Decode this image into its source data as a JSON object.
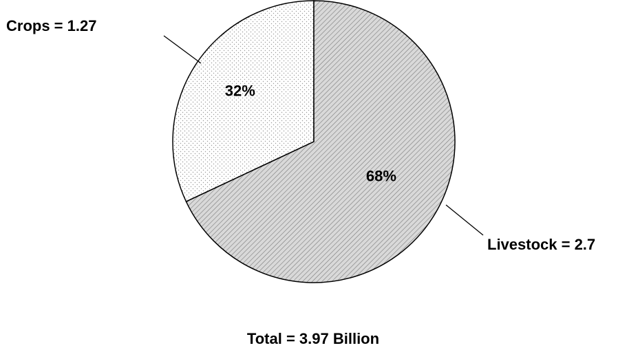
{
  "chart_data": {
    "type": "pie",
    "slices": [
      {
        "name": "Crops",
        "value": 1.27,
        "percent_label": "32%",
        "callout_label": "Crops = 1.27",
        "pattern": "dots",
        "color": "#ffffff"
      },
      {
        "name": "Livestock",
        "value": 2.7,
        "percent_label": "68%",
        "callout_label": "Livestock = 2.7",
        "pattern": "diagonal-hatch",
        "color": "#d9d9d9"
      }
    ],
    "total_label": "Total = 3.97 Billion",
    "start_angle": "12 o'clock",
    "direction": "counter-clockwise from top for Crops"
  },
  "colors": {
    "outline": "#000000",
    "hatch_background": "#d9d9d9",
    "hatch_line": "#7a7a7a",
    "dot": "#9a9a9a",
    "background": "#ffffff"
  }
}
